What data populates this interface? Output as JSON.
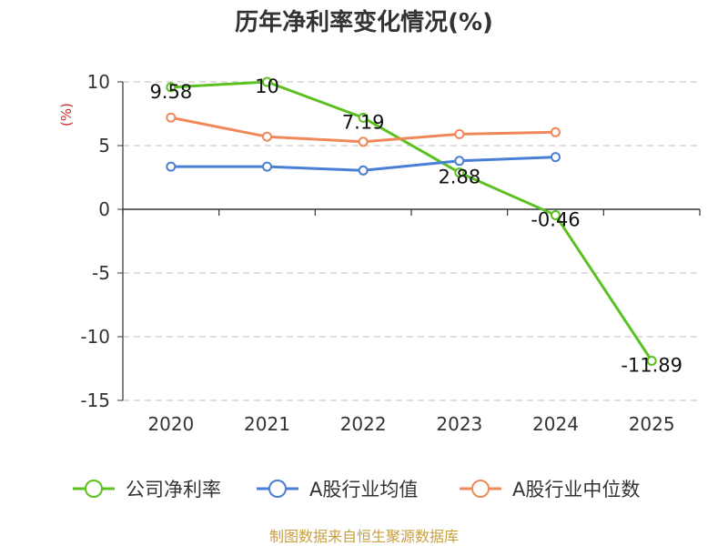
{
  "chart_data": {
    "type": "line",
    "title": "历年净利率变化情况(%)",
    "ylabel": "(%)",
    "xlabel": "",
    "categories": [
      "2020",
      "2021",
      "2022",
      "2023",
      "2024",
      "2025"
    ],
    "ylim": [
      -15,
      10
    ],
    "yticks": [
      10,
      5,
      0,
      -5,
      -10,
      -15
    ],
    "ytick_labels": [
      "10",
      "5",
      "0",
      "-5",
      "-10",
      "-15"
    ],
    "grid": true,
    "legend_position": "bottom",
    "series": [
      {
        "name": "公司净利率",
        "color": "#5cc020",
        "values": [
          9.58,
          10,
          7.19,
          2.88,
          -0.46,
          -11.89
        ],
        "labels": [
          "9.58",
          "10",
          "7.19",
          "2.88",
          "-0.46",
          "-11.89"
        ]
      },
      {
        "name": "A股行业均值",
        "color": "#4a7fd6",
        "values": [
          3.35,
          3.35,
          3.05,
          3.8,
          4.1,
          null
        ]
      },
      {
        "name": "A股行业中位数",
        "color": "#f0895a",
        "values": [
          7.2,
          5.7,
          5.3,
          5.9,
          6.05,
          null
        ]
      }
    ]
  },
  "source_text": "制图数据来自恒生聚源数据库",
  "colors": {
    "ylabel": "#cc2a2a",
    "source": "#c8a040",
    "grid": "#cccccc",
    "axis": "#333333"
  }
}
